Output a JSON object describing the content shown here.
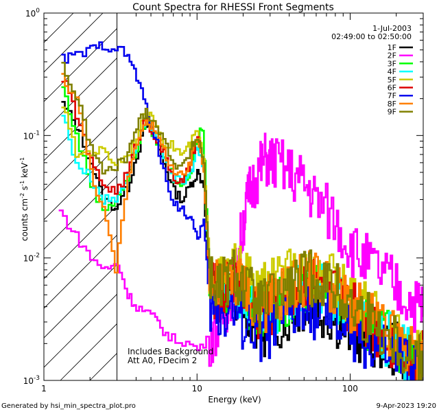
{
  "chart_data": {
    "type": "line",
    "title": "Count Spectra for RHESSI Front Segments",
    "xlabel": "Energy (keV)",
    "ylabel_parts": [
      "counts cm",
      "-2",
      " s",
      "-1",
      " keV",
      "-1"
    ],
    "xscale": "log",
    "yscale": "log",
    "xlim": [
      1,
      300
    ],
    "ylim": [
      0.001,
      1
    ],
    "x_ticks": [
      {
        "v": 1,
        "label": "1"
      },
      {
        "v": 10,
        "label": "10"
      },
      {
        "v": 100,
        "label": "100"
      }
    ],
    "y_ticks": [
      {
        "v": 1,
        "mant": "10",
        "exp": "0"
      },
      {
        "v": 0.1,
        "mant": "10",
        "exp": "-1"
      },
      {
        "v": 0.01,
        "mant": "10",
        "exp": "-2"
      },
      {
        "v": 0.001,
        "mant": "10",
        "exp": "-3"
      }
    ],
    "date": "1-Jul-2003",
    "time_range": "02:49:00 to 02:50:00",
    "annotation": [
      "Includes Background",
      "Att A0, FDecim 2"
    ],
    "hatched_below_keV": 3,
    "series": [
      {
        "name": "1F",
        "color": "#000000",
        "points": [
          [
            1.3,
            0.18
          ],
          [
            1.6,
            0.12
          ],
          [
            2.0,
            0.06
          ],
          [
            2.4,
            0.03
          ],
          [
            2.9,
            0.026
          ],
          [
            3.5,
            0.038
          ],
          [
            4.0,
            0.07
          ],
          [
            4.6,
            0.12
          ],
          [
            5.2,
            0.095
          ],
          [
            6.0,
            0.06
          ],
          [
            7.0,
            0.035
          ],
          [
            8.0,
            0.03
          ],
          [
            9.0,
            0.04
          ],
          [
            10.0,
            0.05
          ],
          [
            11.0,
            0.04
          ],
          [
            12.0,
            0.005
          ],
          [
            14.0,
            0.004
          ],
          [
            17.0,
            0.006
          ],
          [
            20.0,
            0.0042
          ],
          [
            25.0,
            0.0026
          ],
          [
            30.0,
            0.0028
          ],
          [
            40.0,
            0.0035
          ],
          [
            50.0,
            0.0042
          ],
          [
            60.0,
            0.004
          ],
          [
            80.0,
            0.0032
          ],
          [
            100.0,
            0.0025
          ],
          [
            130.0,
            0.0022
          ],
          [
            170.0,
            0.002
          ],
          [
            220.0,
            0.0016
          ],
          [
            280.0,
            0.0014
          ]
        ]
      },
      {
        "name": "2F",
        "color": "#ff00ff",
        "points": [
          [
            1.25,
            0.024
          ],
          [
            1.6,
            0.015
          ],
          [
            2.0,
            0.01
          ],
          [
            2.5,
            0.008
          ],
          [
            3.0,
            0.009
          ],
          [
            3.5,
            0.005
          ],
          [
            4.0,
            0.004
          ],
          [
            4.8,
            0.0035
          ],
          [
            5.5,
            0.003
          ],
          [
            6.5,
            0.0022
          ],
          [
            8.0,
            0.0021
          ],
          [
            10.0,
            0.0018
          ],
          [
            12.0,
            0.0022
          ],
          [
            14.0,
            0.003
          ],
          [
            16.0,
            0.0045
          ],
          [
            18.0,
            0.008
          ],
          [
            20.0,
            0.02
          ],
          [
            22.0,
            0.035
          ],
          [
            25.0,
            0.05
          ],
          [
            28.0,
            0.065
          ],
          [
            32.0,
            0.06
          ],
          [
            40.0,
            0.05
          ],
          [
            50.0,
            0.04
          ],
          [
            60.0,
            0.03
          ],
          [
            80.0,
            0.02
          ],
          [
            100.0,
            0.012
          ],
          [
            130.0,
            0.009
          ],
          [
            170.0,
            0.007
          ],
          [
            220.0,
            0.005
          ],
          [
            280.0,
            0.004
          ]
        ]
      },
      {
        "name": "3F",
        "color": "#00ff00",
        "points": [
          [
            1.3,
            0.25
          ],
          [
            1.6,
            0.1
          ],
          [
            2.0,
            0.04
          ],
          [
            2.4,
            0.025
          ],
          [
            2.9,
            0.03
          ],
          [
            3.5,
            0.045
          ],
          [
            4.0,
            0.08
          ],
          [
            4.6,
            0.13
          ],
          [
            5.2,
            0.1
          ],
          [
            6.0,
            0.07
          ],
          [
            7.0,
            0.045
          ],
          [
            8.0,
            0.04
          ],
          [
            9.0,
            0.05
          ],
          [
            10.0,
            0.09
          ],
          [
            10.8,
            0.12
          ],
          [
            12.0,
            0.006
          ],
          [
            14.0,
            0.005
          ],
          [
            17.0,
            0.007
          ],
          [
            20.0,
            0.005
          ],
          [
            25.0,
            0.0035
          ],
          [
            30.0,
            0.004
          ],
          [
            40.0,
            0.005
          ],
          [
            50.0,
            0.0058
          ],
          [
            60.0,
            0.006
          ],
          [
            80.0,
            0.0045
          ],
          [
            100.0,
            0.0035
          ],
          [
            130.0,
            0.0028
          ],
          [
            170.0,
            0.0022
          ],
          [
            220.0,
            0.0017
          ],
          [
            280.0,
            0.0014
          ]
        ]
      },
      {
        "name": "4F",
        "color": "#00ffff",
        "points": [
          [
            1.3,
            0.15
          ],
          [
            1.6,
            0.06
          ],
          [
            2.0,
            0.045
          ],
          [
            2.4,
            0.03
          ],
          [
            2.9,
            0.03
          ],
          [
            3.5,
            0.05
          ],
          [
            4.0,
            0.09
          ],
          [
            4.6,
            0.14
          ],
          [
            5.2,
            0.1
          ],
          [
            6.0,
            0.07
          ],
          [
            7.0,
            0.045
          ],
          [
            8.0,
            0.04
          ],
          [
            9.0,
            0.05
          ],
          [
            10.0,
            0.08
          ],
          [
            11.0,
            0.05
          ],
          [
            12.0,
            0.006
          ],
          [
            14.0,
            0.0045
          ],
          [
            17.0,
            0.0065
          ],
          [
            20.0,
            0.0048
          ],
          [
            25.0,
            0.0032
          ],
          [
            30.0,
            0.0036
          ],
          [
            40.0,
            0.0046
          ],
          [
            50.0,
            0.0056
          ],
          [
            60.0,
            0.006
          ],
          [
            80.0,
            0.0045
          ],
          [
            100.0,
            0.0034
          ],
          [
            130.0,
            0.0028
          ],
          [
            170.0,
            0.0022
          ],
          [
            220.0,
            0.0017
          ],
          [
            280.0,
            0.0014
          ]
        ]
      },
      {
        "name": "5F",
        "color": "#cccc00",
        "points": [
          [
            1.3,
            0.18
          ],
          [
            1.6,
            0.07
          ],
          [
            2.0,
            0.075
          ],
          [
            2.4,
            0.075
          ],
          [
            2.9,
            0.06
          ],
          [
            3.5,
            0.07
          ],
          [
            4.0,
            0.1
          ],
          [
            4.6,
            0.15
          ],
          [
            5.2,
            0.13
          ],
          [
            6.0,
            0.09
          ],
          [
            7.0,
            0.08
          ],
          [
            8.0,
            0.07
          ],
          [
            9.0,
            0.085
          ],
          [
            10.0,
            0.11
          ],
          [
            11.0,
            0.06
          ],
          [
            12.0,
            0.008
          ],
          [
            14.0,
            0.006
          ],
          [
            17.0,
            0.008
          ],
          [
            20.0,
            0.007
          ],
          [
            25.0,
            0.005
          ],
          [
            30.0,
            0.006
          ],
          [
            40.0,
            0.007
          ],
          [
            50.0,
            0.0078
          ],
          [
            60.0,
            0.008
          ],
          [
            80.0,
            0.006
          ],
          [
            100.0,
            0.0045
          ],
          [
            130.0,
            0.0035
          ],
          [
            170.0,
            0.0028
          ],
          [
            220.0,
            0.002
          ],
          [
            280.0,
            0.0015
          ]
        ]
      },
      {
        "name": "6F",
        "color": "#dd0000",
        "points": [
          [
            1.3,
            0.3
          ],
          [
            1.6,
            0.15
          ],
          [
            2.0,
            0.06
          ],
          [
            2.4,
            0.04
          ],
          [
            2.9,
            0.035
          ],
          [
            3.5,
            0.05
          ],
          [
            4.0,
            0.09
          ],
          [
            4.6,
            0.14
          ],
          [
            5.2,
            0.1
          ],
          [
            6.0,
            0.07
          ],
          [
            7.0,
            0.045
          ],
          [
            8.0,
            0.04
          ],
          [
            9.0,
            0.06
          ],
          [
            10.0,
            0.1
          ],
          [
            11.0,
            0.05
          ],
          [
            12.0,
            0.006
          ],
          [
            14.0,
            0.005
          ],
          [
            17.0,
            0.007
          ],
          [
            20.0,
            0.0055
          ],
          [
            25.0,
            0.0036
          ],
          [
            30.0,
            0.004
          ],
          [
            40.0,
            0.0052
          ],
          [
            50.0,
            0.0062
          ],
          [
            60.0,
            0.0065
          ],
          [
            80.0,
            0.005
          ],
          [
            100.0,
            0.0038
          ],
          [
            130.0,
            0.003
          ],
          [
            170.0,
            0.0024
          ],
          [
            220.0,
            0.0018
          ],
          [
            280.0,
            0.0015
          ]
        ]
      },
      {
        "name": "7F",
        "color": "#0000ee",
        "points": [
          [
            1.3,
            0.42
          ],
          [
            1.6,
            0.45
          ],
          [
            2.0,
            0.5
          ],
          [
            2.4,
            0.55
          ],
          [
            2.9,
            0.52
          ],
          [
            3.5,
            0.45
          ],
          [
            4.0,
            0.3
          ],
          [
            4.6,
            0.17
          ],
          [
            5.2,
            0.1
          ],
          [
            6.0,
            0.05
          ],
          [
            7.0,
            0.028
          ],
          [
            8.0,
            0.025
          ],
          [
            9.0,
            0.02
          ],
          [
            10.0,
            0.015
          ],
          [
            11.0,
            0.02
          ],
          [
            12.0,
            0.004
          ],
          [
            14.0,
            0.0035
          ],
          [
            17.0,
            0.004
          ],
          [
            20.0,
            0.003
          ],
          [
            25.0,
            0.0024
          ],
          [
            30.0,
            0.0025
          ],
          [
            40.0,
            0.0032
          ],
          [
            50.0,
            0.0038
          ],
          [
            60.0,
            0.0036
          ],
          [
            80.0,
            0.003
          ],
          [
            100.0,
            0.0024
          ],
          [
            130.0,
            0.002
          ],
          [
            170.0,
            0.0017
          ],
          [
            220.0,
            0.0014
          ],
          [
            280.0,
            0.0012
          ]
        ]
      },
      {
        "name": "8F",
        "color": "#ff7f00",
        "points": [
          [
            1.3,
            0.3
          ],
          [
            1.6,
            0.2
          ],
          [
            2.0,
            0.05
          ],
          [
            2.4,
            0.025
          ],
          [
            2.9,
            0.008
          ],
          [
            3.5,
            0.045
          ],
          [
            4.0,
            0.09
          ],
          [
            4.6,
            0.14
          ],
          [
            5.2,
            0.11
          ],
          [
            6.0,
            0.075
          ],
          [
            7.0,
            0.05
          ],
          [
            8.0,
            0.045
          ],
          [
            9.0,
            0.06
          ],
          [
            10.0,
            0.1
          ],
          [
            11.0,
            0.05
          ],
          [
            12.0,
            0.007
          ],
          [
            14.0,
            0.0055
          ],
          [
            17.0,
            0.0075
          ],
          [
            20.0,
            0.006
          ],
          [
            25.0,
            0.004
          ],
          [
            30.0,
            0.0045
          ],
          [
            40.0,
            0.0058
          ],
          [
            50.0,
            0.0068
          ],
          [
            60.0,
            0.007
          ],
          [
            80.0,
            0.0055
          ],
          [
            100.0,
            0.004
          ],
          [
            130.0,
            0.0032
          ],
          [
            170.0,
            0.0025
          ],
          [
            220.0,
            0.0019
          ],
          [
            280.0,
            0.0015
          ]
        ]
      },
      {
        "name": "9F",
        "color": "#808000",
        "points": [
          [
            1.3,
            0.38
          ],
          [
            1.6,
            0.2
          ],
          [
            2.0,
            0.08
          ],
          [
            2.4,
            0.05
          ],
          [
            2.9,
            0.055
          ],
          [
            3.5,
            0.07
          ],
          [
            4.0,
            0.12
          ],
          [
            4.6,
            0.16
          ],
          [
            5.2,
            0.13
          ],
          [
            6.0,
            0.09
          ],
          [
            7.0,
            0.06
          ],
          [
            8.0,
            0.055
          ],
          [
            9.0,
            0.075
          ],
          [
            10.0,
            0.1
          ],
          [
            11.0,
            0.06
          ],
          [
            12.0,
            0.007
          ],
          [
            14.0,
            0.0055
          ],
          [
            17.0,
            0.0075
          ],
          [
            20.0,
            0.006
          ],
          [
            25.0,
            0.004
          ],
          [
            30.0,
            0.0045
          ],
          [
            40.0,
            0.0058
          ],
          [
            50.0,
            0.0068
          ],
          [
            60.0,
            0.007
          ],
          [
            80.0,
            0.0055
          ],
          [
            100.0,
            0.004
          ],
          [
            130.0,
            0.0032
          ],
          [
            170.0,
            0.0025
          ],
          [
            220.0,
            0.0019
          ],
          [
            280.0,
            0.0015
          ]
        ]
      }
    ]
  },
  "footer": {
    "generated_by": "Generated by hsi_min_spectra_plot.pro",
    "timestamp": "9-Apr-2023 19:20"
  }
}
